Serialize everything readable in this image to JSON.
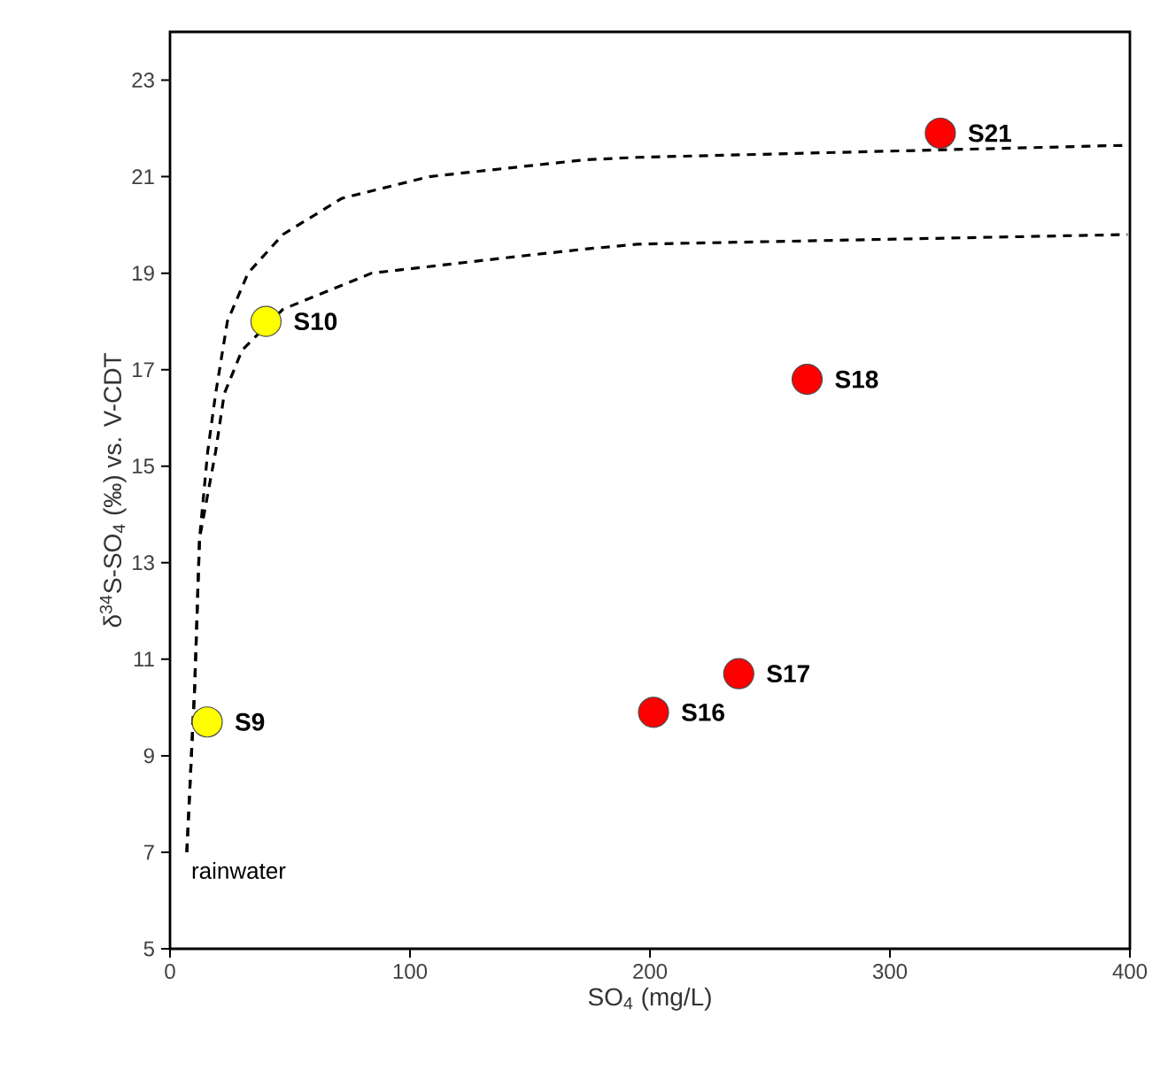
{
  "chart_data": {
    "type": "scatter",
    "xlabel": "SO$_{4}$ (mg/L)",
    "ylabel": "δ$^{34}$S-SO$_{4}$ (‰) vs. V-CDT",
    "xlim": [
      0,
      400
    ],
    "xticks": [
      0,
      100,
      200,
      300,
      400
    ],
    "ylim": [
      5,
      24
    ],
    "yticks": [
      5,
      7,
      9,
      11,
      13,
      15,
      17,
      19,
      21,
      23
    ],
    "series": [
      {
        "type": "line",
        "color": "#000000",
        "line_style": "dashed",
        "marker": "none",
        "x": [
          7,
          10.3,
          12.3,
          15.7,
          19,
          23.9,
          32.5,
          47,
          71.6,
          108,
          173,
          195,
          399
        ],
        "values": [
          7,
          10.45,
          13.5,
          15.3,
          16.5,
          18.0,
          19.0,
          19.8,
          20.55,
          21.0,
          21.35,
          21.4,
          21.65
        ]
      },
      {
        "type": "line",
        "color": "#000000",
        "line_style": "dashed",
        "marker": "none",
        "x": [
          7,
          10.3,
          12.3,
          19,
          22.6,
          30,
          47,
          84,
          145.5,
          173,
          195,
          399
        ],
        "values": [
          7,
          10.45,
          13.5,
          15.3,
          16.5,
          17.4,
          18.25,
          19.0,
          19.35,
          19.5,
          19.6,
          19.8
        ]
      },
      {
        "color": "#ffff00",
        "marker": "circle",
        "x": [
          15.5,
          40
        ],
        "values": [
          9.7,
          18.0
        ]
      },
      {
        "color": "#ff0000",
        "marker": "circle",
        "x": [
          201.5,
          237,
          265.5,
          321
        ],
        "values": [
          9.9,
          10.7,
          16.8,
          21.9
        ]
      }
    ],
    "annotations": [
      {
        "text": "S9",
        "x": 15.5,
        "y": 9.7
      },
      {
        "text": "S10",
        "x": 40,
        "y": 18.0
      },
      {
        "text": "S16",
        "x": 201.5,
        "y": 9.9
      },
      {
        "text": "S17",
        "x": 237,
        "y": 10.7
      },
      {
        "text": "S18",
        "x": 265.5,
        "y": 16.8
      },
      {
        "text": "S21",
        "x": 321,
        "y": 21.9
      },
      {
        "text": "rainwater",
        "x": 7,
        "y": 7
      }
    ]
  }
}
